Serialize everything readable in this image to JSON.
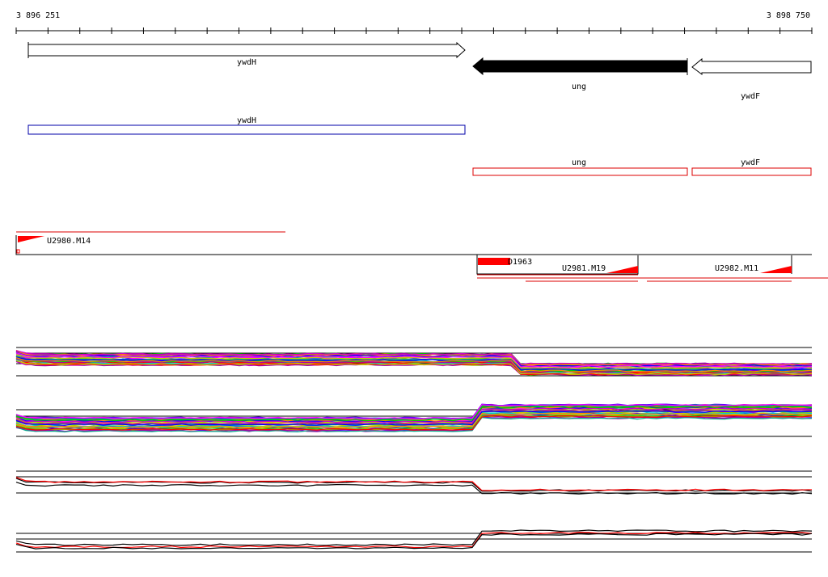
{
  "axis": {
    "start": "3 896 251",
    "end": "3 898 750"
  },
  "genes": [
    {
      "label": "ywdH"
    },
    {
      "label": "ung"
    },
    {
      "label": "ywdF"
    }
  ],
  "annotations": [
    {
      "label": "ywdH"
    },
    {
      "label": "ung"
    },
    {
      "label": "ywdF"
    }
  ],
  "regions": [
    {
      "label": "U2980.M14"
    },
    {
      "label": "D1963"
    },
    {
      "label": "U2981.M19"
    },
    {
      "label": "U2982.M11"
    }
  ]
}
